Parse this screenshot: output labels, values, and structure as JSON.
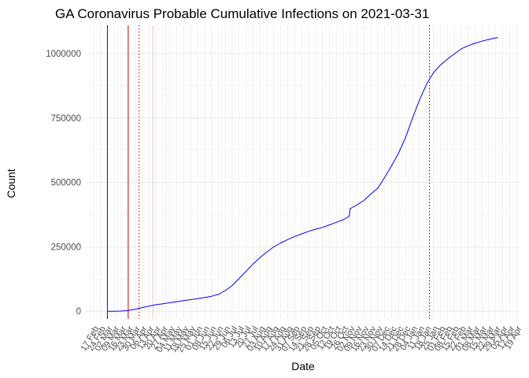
{
  "chart_data": {
    "type": "line",
    "title": "GA Coronavirus Probable Cumulative Infections on 2021-03-31",
    "xlabel": "Date",
    "ylabel": "Count",
    "ylim": [
      -30000,
      1110000
    ],
    "yticks": [
      0,
      250000,
      500000,
      750000,
      1000000
    ],
    "ytick_labels": [
      "0",
      "250000",
      "500000",
      "750000",
      "1000000"
    ],
    "xlim": [
      "2020-02-10",
      "2021-04-22"
    ],
    "xtick_labels": [
      "17 Feb",
      "24 Feb",
      "02 Mar",
      "09 Mar",
      "16 Mar",
      "23 Mar",
      "30 Mar",
      "06 Apr",
      "13 Apr",
      "20 Apr",
      "27 Apr",
      "04 May",
      "11 May",
      "18 May",
      "25 May",
      "01 Jun",
      "08 Jun",
      "15 Jun",
      "22 Jun",
      "29 Jun",
      "06 Jul",
      "13 Jul",
      "20 Jul",
      "27 Jul",
      "03 Aug",
      "10 Aug",
      "17 Aug",
      "24 Aug",
      "31 Aug",
      "07 Sep",
      "14 Sep",
      "21 Sep",
      "28 Sep",
      "05 Oct",
      "12 Oct",
      "19 Oct",
      "26 Oct",
      "02 Nov",
      "09 Nov",
      "16 Nov",
      "23 Nov",
      "30 Nov",
      "07 Dec",
      "14 Dec",
      "21 Dec",
      "28 Dec",
      "04 Jan",
      "11 Jan",
      "18 Jan",
      "25 Jan",
      "01 Feb",
      "08 Feb",
      "15 Feb",
      "22 Feb",
      "01 Mar",
      "08 Mar",
      "15 Mar",
      "22 Mar",
      "29 Mar",
      "05 Apr",
      "12 Apr",
      "19 Apr"
    ],
    "grid": true,
    "series": [
      {
        "color": "#0000ff",
        "x": [
          "2020-03-02",
          "2020-03-09",
          "2020-03-16",
          "2020-03-23",
          "2020-03-30",
          "2020-04-06",
          "2020-04-13",
          "2020-04-20",
          "2020-04-27",
          "2020-05-04",
          "2020-05-11",
          "2020-05-18",
          "2020-05-25",
          "2020-06-01",
          "2020-06-08",
          "2020-06-15",
          "2020-06-22",
          "2020-06-29",
          "2020-07-06",
          "2020-07-13",
          "2020-07-20",
          "2020-07-27",
          "2020-08-03",
          "2020-08-10",
          "2020-08-17",
          "2020-08-24",
          "2020-08-31",
          "2020-09-07",
          "2020-09-14",
          "2020-09-21",
          "2020-09-28",
          "2020-10-05",
          "2020-10-12",
          "2020-10-19",
          "2020-10-26",
          "2020-11-01",
          "2020-11-02",
          "2020-11-09",
          "2020-11-16",
          "2020-11-23",
          "2020-11-30",
          "2020-12-07",
          "2020-12-14",
          "2020-12-21",
          "2020-12-28",
          "2021-01-04",
          "2021-01-11",
          "2021-01-18",
          "2021-01-25",
          "2021-02-01",
          "2021-02-08",
          "2021-02-15",
          "2021-02-22",
          "2021-03-01",
          "2021-03-08",
          "2021-03-15",
          "2021-03-22",
          "2021-03-31"
        ],
        "values": [
          0,
          0,
          500,
          3000,
          8000,
          14000,
          20000,
          25000,
          29000,
          33000,
          37000,
          41000,
          45000,
          49000,
          53000,
          58000,
          65000,
          80000,
          100000,
          127000,
          155000,
          183000,
          208000,
          230000,
          250000,
          265000,
          278000,
          290000,
          300000,
          310000,
          318000,
          325000,
          335000,
          345000,
          355000,
          368000,
          398000,
          413000,
          430000,
          455000,
          478000,
          520000,
          565000,
          615000,
          675000,
          750000,
          820000,
          880000,
          925000,
          955000,
          978000,
          998000,
          1018000,
          1030000,
          1040000,
          1048000,
          1055000,
          1062000
        ]
      }
    ],
    "vlines": [
      {
        "x": "2020-03-02",
        "color": "#0000ff",
        "style": "solid"
      },
      {
        "x": "2020-03-23",
        "color": "#cc0000",
        "style": "solid"
      },
      {
        "x": "2020-04-03",
        "color": "#cc0000",
        "style": "dotted"
      },
      {
        "x": "2020-04-17",
        "color": "#ffc0cb",
        "style": "solid"
      },
      {
        "x": "2020-04-30",
        "color": "#ffc0cb",
        "style": "dotted"
      },
      {
        "x": "2021-01-21",
        "color": "#1a1a5e",
        "style": "dotted"
      }
    ]
  }
}
